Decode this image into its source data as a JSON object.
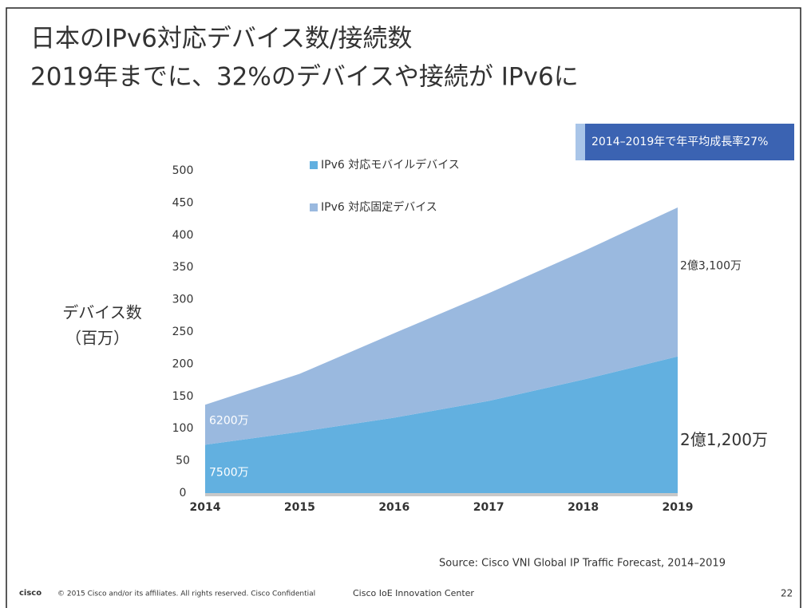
{
  "title_lines": [
    "日本のIPv6対応デバイス数/接続数",
    "2019年までに、32%のデバイスや接続が IPv6に"
  ],
  "callout": "2014–2019年で年平均成長率27%",
  "chart_data": {
    "type": "stacked_area",
    "ylabel": [
      "デバイス数",
      "（百万）"
    ],
    "categories": [
      "2014",
      "2015",
      "2016",
      "2017",
      "2018",
      "2019"
    ],
    "series": [
      {
        "name": "IPv6 対応モバイルデバイス",
        "color": "#62b0e0",
        "values": [
          75,
          95,
          117,
          143,
          176,
          212
        ],
        "value_labels": [
          "7500万",
          null,
          null,
          null,
          null,
          "2億1,200万"
        ]
      },
      {
        "name": "IPv6 対応固定デバイス",
        "color": "#9ab9df",
        "values": [
          62,
          90,
          131,
          167,
          199,
          231
        ],
        "value_labels": [
          "6200万",
          null,
          null,
          null,
          null,
          "2億3,100万"
        ]
      }
    ],
    "ylim": [
      0,
      500
    ],
    "yticks": [
      0,
      50,
      100,
      150,
      200,
      250,
      300,
      350,
      400,
      450,
      500
    ]
  },
  "source": "Source: Cisco VNI Global IP Traffic Forecast, 2014–2019",
  "footer": {
    "logo": "cisco",
    "copyright": "© 2015 Cisco and/or its affiliates. All rights reserved. Cisco Confidential",
    "center": "Cisco IoE Innovation Center",
    "page": "22"
  }
}
